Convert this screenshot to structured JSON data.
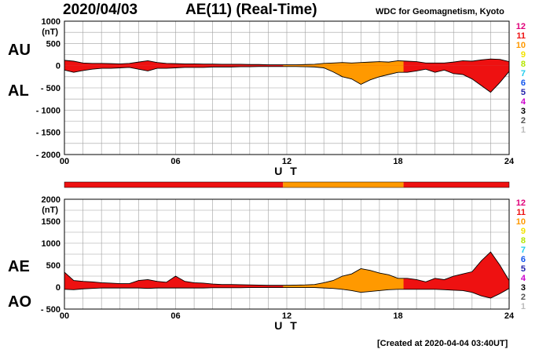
{
  "header": {
    "date": "2020/04/03",
    "title": "AE(11) (Real-Time)",
    "source": "WDC for Geomagnetism, Kyoto"
  },
  "footer": {
    "created": "[Created at 2020-04-04 03:40UT]"
  },
  "colors": {
    "grid": "#a0a0a0",
    "station_counts": {
      "12": "#e0007a",
      "11": "#ee1111",
      "10": "#ff9900",
      "9": "#f2e200",
      "8": "#b4e600",
      "7": "#22ccee",
      "6": "#1155ee",
      "5": "#2222aa",
      "4": "#cc00cc",
      "3": "#000000",
      "2": "#555555",
      "1": "#bbbbbb"
    }
  },
  "chart_data": [
    {
      "type": "area",
      "id": "au-al",
      "series_labels": [
        "AU",
        "AL"
      ],
      "unit": "(nT)",
      "xlabel": "U T",
      "x_ticks": [
        "00",
        "06",
        "12",
        "18",
        "24"
      ],
      "xlim": [
        0,
        24
      ],
      "ylim": [
        -2000,
        1000
      ],
      "y_ticks": [
        {
          "value": 1000,
          "label": "1000"
        },
        {
          "value": 500,
          "label": "500"
        },
        {
          "value": 0,
          "label": "0"
        },
        {
          "value": -500,
          "label": "- 500"
        },
        {
          "value": -1000,
          "label": "- 1000"
        },
        {
          "value": -1500,
          "label": "- 1500"
        },
        {
          "value": -2000,
          "label": "- 2000"
        }
      ],
      "x": [
        0,
        0.5,
        1,
        1.5,
        2,
        2.5,
        3,
        3.5,
        4,
        4.5,
        5,
        5.5,
        6,
        6.5,
        7,
        7.5,
        8,
        8.5,
        9,
        9.5,
        10,
        10.5,
        11,
        11.5,
        12,
        12.5,
        13,
        13.5,
        14,
        14.5,
        15,
        15.5,
        16,
        16.5,
        17,
        17.5,
        18,
        18.5,
        19,
        19.5,
        20,
        20.5,
        21,
        21.5,
        22,
        22.5,
        23,
        23.5,
        24
      ],
      "series": [
        {
          "name": "AU",
          "values": [
            120,
            100,
            60,
            50,
            50,
            45,
            40,
            50,
            80,
            110,
            70,
            50,
            45,
            40,
            40,
            35,
            35,
            30,
            30,
            30,
            25,
            25,
            20,
            20,
            20,
            20,
            25,
            30,
            50,
            60,
            70,
            60,
            70,
            80,
            90,
            80,
            110,
            100,
            90,
            60,
            60,
            60,
            80,
            110,
            100,
            130,
            150,
            140,
            90
          ]
        },
        {
          "name": "AL",
          "values": [
            -100,
            -150,
            -110,
            -80,
            -60,
            -60,
            -50,
            -40,
            -80,
            -120,
            -60,
            -60,
            -50,
            -40,
            -40,
            -40,
            -30,
            -30,
            -30,
            -25,
            -25,
            -20,
            -20,
            -20,
            -20,
            -20,
            -25,
            -30,
            -50,
            -140,
            -250,
            -300,
            -420,
            -320,
            -250,
            -200,
            -150,
            -150,
            -120,
            -80,
            -150,
            -100,
            -180,
            -200,
            -300,
            -450,
            -600,
            -380,
            -130
          ]
        }
      ],
      "count_scale": [
        "12",
        "11",
        "10",
        "9",
        "8",
        "7",
        "6",
        "5",
        "4",
        "3",
        "2",
        "1"
      ]
    },
    {
      "type": "area",
      "id": "ae-ao",
      "series_labels": [
        "AE",
        "AO"
      ],
      "unit": "(nT)",
      "xlabel": "U T",
      "x_ticks": [
        "00",
        "06",
        "12",
        "18",
        "24"
      ],
      "xlim": [
        0,
        24
      ],
      "ylim": [
        -500,
        2000
      ],
      "y_ticks": [
        {
          "value": 2000,
          "label": "2000"
        },
        {
          "value": 1500,
          "label": "1500"
        },
        {
          "value": 1000,
          "label": "1000"
        },
        {
          "value": 500,
          "label": "500"
        },
        {
          "value": 0,
          "label": "0"
        },
        {
          "value": -500,
          "label": "- 500"
        }
      ],
      "x": [
        0,
        0.5,
        1,
        1.5,
        2,
        2.5,
        3,
        3.5,
        4,
        4.5,
        5,
        5.5,
        6,
        6.5,
        7,
        7.5,
        8,
        8.5,
        9,
        9.5,
        10,
        10.5,
        11,
        11.5,
        12,
        12.5,
        13,
        13.5,
        14,
        14.5,
        15,
        15.5,
        16,
        16.5,
        17,
        17.5,
        18,
        18.5,
        19,
        19.5,
        20,
        20.5,
        21,
        21.5,
        22,
        22.5,
        23,
        23.5,
        24
      ],
      "series": [
        {
          "name": "AE",
          "values": [
            340,
            150,
            130,
            120,
            100,
            90,
            80,
            80,
            150,
            170,
            130,
            110,
            250,
            130,
            100,
            90,
            70,
            60,
            60,
            55,
            50,
            45,
            40,
            40,
            40,
            45,
            50,
            60,
            100,
            150,
            250,
            300,
            420,
            380,
            320,
            280,
            200,
            200,
            170,
            120,
            200,
            170,
            250,
            300,
            350,
            600,
            800,
            500,
            150
          ]
        },
        {
          "name": "AO",
          "values": [
            -50,
            -60,
            -40,
            -30,
            -20,
            -20,
            -20,
            -20,
            -20,
            -30,
            -20,
            -20,
            -20,
            -20,
            -20,
            -20,
            -15,
            -15,
            -15,
            -15,
            -10,
            -10,
            -10,
            -10,
            -10,
            -10,
            -10,
            -10,
            -20,
            -30,
            -50,
            -80,
            -120,
            -100,
            -80,
            -60,
            -50,
            -50,
            -50,
            -50,
            -50,
            -60,
            -70,
            -80,
            -120,
            -200,
            -250,
            -150,
            -30
          ]
        }
      ],
      "count_scale": [
        "12",
        "11",
        "10",
        "9",
        "8",
        "7",
        "6",
        "5",
        "4",
        "3",
        "2",
        "1"
      ]
    }
  ],
  "station_count_timeline": [
    {
      "from": 0,
      "to": 11.8,
      "count": "11"
    },
    {
      "from": 11.8,
      "to": 18.3,
      "count": "10"
    },
    {
      "from": 18.3,
      "to": 24,
      "count": "11"
    }
  ]
}
